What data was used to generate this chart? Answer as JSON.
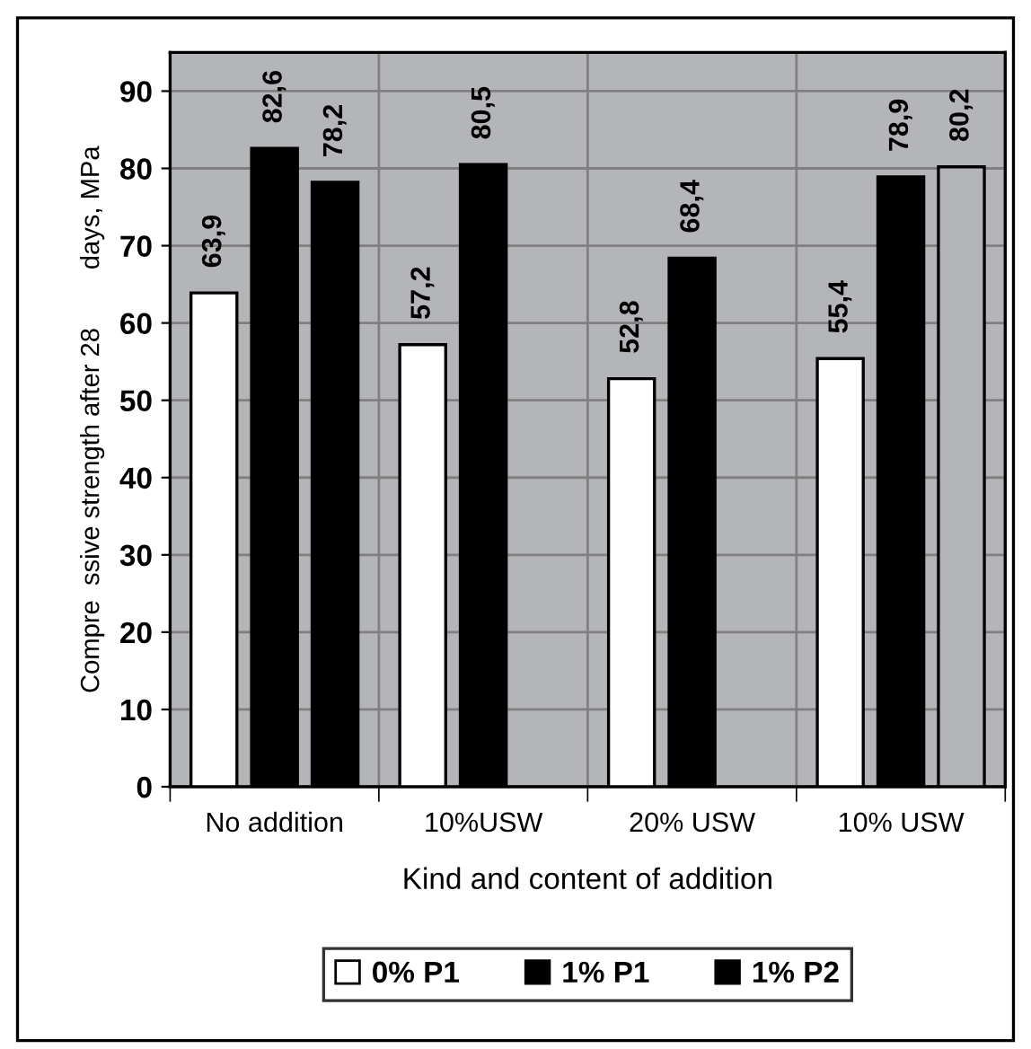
{
  "chart_data": {
    "type": "bar",
    "xlabel": "Kind and content of addition",
    "ylabel": "Compre  ssive strength after 28        days, MPa",
    "categories": [
      "No addition",
      "10%USW",
      "20% USW",
      "10% USW"
    ],
    "series": [
      {
        "name": "0% P1",
        "color": "#ffffff",
        "values": [
          63.9,
          57.2,
          52.8,
          55.4
        ],
        "value_labels": [
          "63,9",
          "57,2",
          "52,8",
          "55,4"
        ]
      },
      {
        "name": "1% P1",
        "color": "#000000",
        "values": [
          82.6,
          80.5,
          68.4,
          78.9
        ],
        "value_labels": [
          "82,6",
          "80,5",
          "68,4",
          "78,9"
        ]
      },
      {
        "name": "1% P2",
        "color": "#000000",
        "colors": [
          "#000000",
          null,
          null,
          "#b4b5b9"
        ],
        "values": [
          78.2,
          null,
          null,
          80.2
        ],
        "value_labels": [
          "78,2",
          null,
          null,
          "80,2"
        ]
      }
    ],
    "ylim": [
      0,
      95
    ],
    "yticks": [
      0,
      10,
      20,
      30,
      40,
      50,
      60,
      70,
      80,
      90
    ],
    "grid": true,
    "legend": "bottom"
  }
}
